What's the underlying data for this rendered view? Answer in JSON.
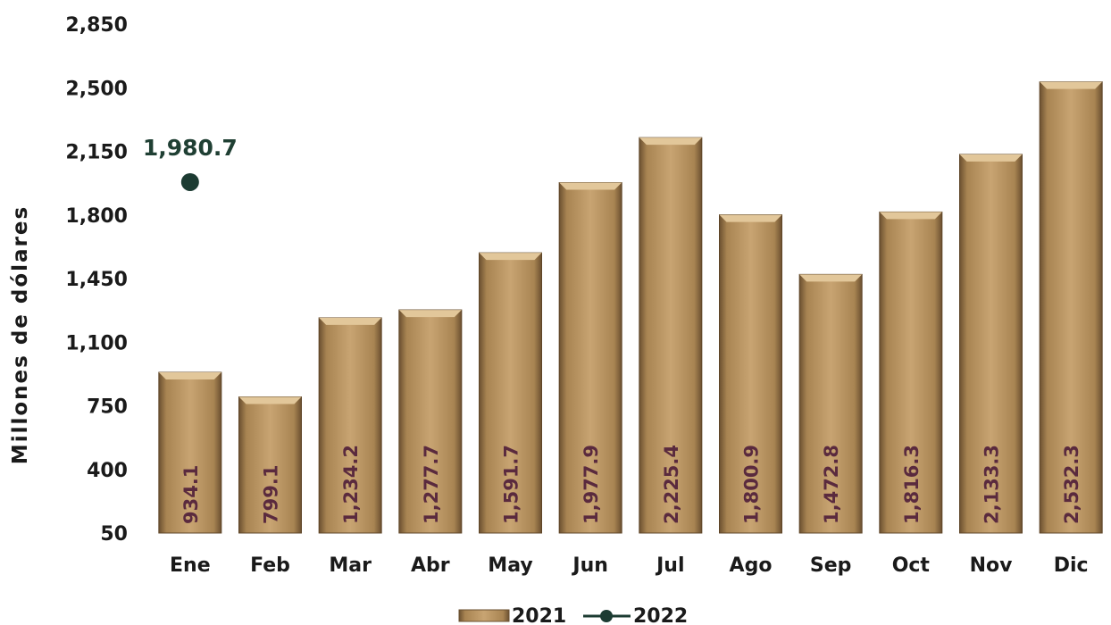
{
  "chart_data": {
    "type": "bar",
    "categories": [
      "Ene",
      "Feb",
      "Mar",
      "Abr",
      "May",
      "Jun",
      "Jul",
      "Ago",
      "Sep",
      "Oct",
      "Nov",
      "Dic"
    ],
    "series": [
      {
        "name": "2021",
        "kind": "bar",
        "values": [
          934.1,
          799.1,
          1234.2,
          1277.7,
          1591.7,
          1977.9,
          2225.4,
          1800.9,
          1472.8,
          1816.3,
          2133.3,
          2532.3
        ],
        "labels": [
          "934.1",
          "799.1",
          "1,234.2",
          "1,277.7",
          "1,591.7",
          "1,977.9",
          "2,225.4",
          "1,800.9",
          "1,472.8",
          "1,816.3",
          "2,133.3",
          "2,532.3"
        ]
      },
      {
        "name": "2022",
        "kind": "line-marker",
        "values": [
          1980.7,
          null,
          null,
          null,
          null,
          null,
          null,
          null,
          null,
          null,
          null,
          null
        ],
        "labels": [
          "1,980.7"
        ]
      }
    ],
    "ylabel": "Millones de dólares",
    "xlabel": "",
    "ylim": [
      50,
      2850
    ],
    "yticks": [
      50,
      400,
      750,
      1100,
      1450,
      1800,
      2150,
      2500,
      2850
    ],
    "ytick_labels": [
      "50",
      "400",
      "750",
      "1,100",
      "1,450",
      "1,800",
      "2,150",
      "2,500",
      "2,850"
    ],
    "grid": false,
    "legend_position": "bottom-center",
    "colors": {
      "bar": "#b48f5e",
      "bar_dark": "#6b5030",
      "bar_light": "#e2c79a",
      "marker": "#1c3b32",
      "bar_label": "#5a2a3e",
      "point_label": "#1f3f33"
    }
  }
}
